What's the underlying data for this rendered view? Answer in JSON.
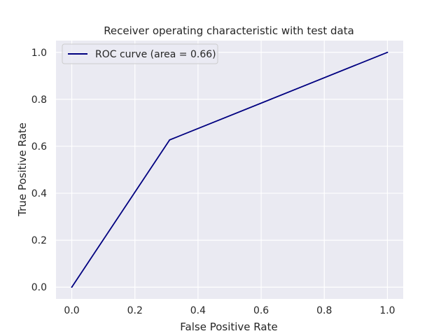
{
  "chart_data": {
    "type": "line",
    "title": "Receiver operating characteristic with test data",
    "xlabel": "False Positive Rate",
    "ylabel": "True Positive Rate",
    "xlim": [
      -0.05,
      1.05
    ],
    "ylim": [
      -0.05,
      1.05
    ],
    "xticks": [
      "0.0",
      "0.2",
      "0.4",
      "0.6",
      "0.8",
      "1.0"
    ],
    "yticks": [
      "0.0",
      "0.2",
      "0.4",
      "0.6",
      "0.8",
      "1.0"
    ],
    "grid": true,
    "legend_position": "top-left",
    "series": [
      {
        "name": "ROC curve (area = 0.66)",
        "color": "#000080",
        "x": [
          0.0,
          0.31,
          1.0
        ],
        "y": [
          0.0,
          0.627,
          1.0
        ]
      }
    ],
    "colors": {
      "plot_background": "#eaeaf2",
      "grid": "#ffffff",
      "text": "#262626"
    }
  }
}
